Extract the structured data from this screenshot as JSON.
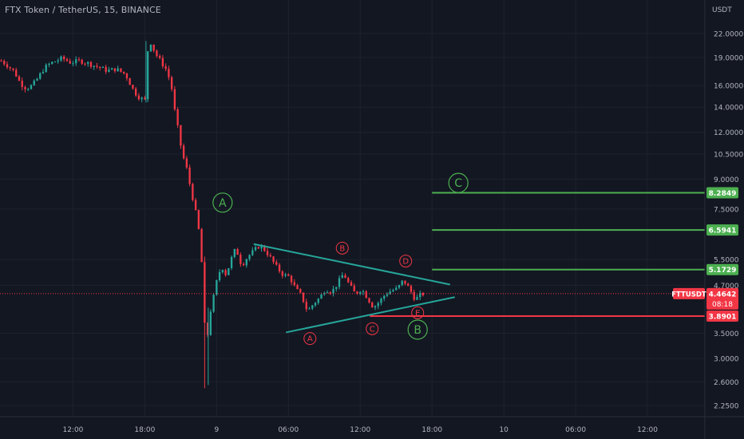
{
  "header": {
    "title": "FTX Token / TetherUS, 15, BINANCE"
  },
  "axis": {
    "currency": "USDT",
    "y_ticks": [
      {
        "label": "22.0000",
        "value": 22.0
      },
      {
        "label": "19.0000",
        "value": 19.0
      },
      {
        "label": "16.0000",
        "value": 16.0
      },
      {
        "label": "14.0000",
        "value": 14.0
      },
      {
        "label": "12.0000",
        "value": 12.0
      },
      {
        "label": "10.5000",
        "value": 10.5
      },
      {
        "label": "9.0000",
        "value": 9.0
      },
      {
        "label": "7.5000",
        "value": 7.5
      },
      {
        "label": "5.5000",
        "value": 5.5
      },
      {
        "label": "4.7000",
        "value": 4.7
      },
      {
        "label": "3.5000",
        "value": 3.5
      },
      {
        "label": "3.0000",
        "value": 3.0
      },
      {
        "label": "2.6000",
        "value": 2.6
      },
      {
        "label": "2.2500",
        "value": 2.25
      }
    ],
    "x_ticks": [
      {
        "label": "12:00",
        "t": 12
      },
      {
        "label": "18:00",
        "t": 18
      },
      {
        "label": "9",
        "t": 24
      },
      {
        "label": "06:00",
        "t": 30
      },
      {
        "label": "12:00",
        "t": 36
      },
      {
        "label": "18:00",
        "t": 42
      },
      {
        "label": "10",
        "t": 48
      },
      {
        "label": "06:00",
        "t": 54
      },
      {
        "label": "12:00",
        "t": 60
      }
    ]
  },
  "price_tags": [
    {
      "label": "8.2849",
      "value": 8.2849,
      "color": "#4caf50"
    },
    {
      "label": "6.5941",
      "value": 6.5941,
      "color": "#4caf50"
    },
    {
      "label": "5.1729",
      "value": 5.1729,
      "color": "#4caf50"
    },
    {
      "label": "3.8901",
      "value": 3.8901,
      "color": "#f23645"
    }
  ],
  "current": {
    "symbol": "FTTUSDT",
    "price": "4.4642",
    "countdown": "08:18",
    "value": 4.4642,
    "color": "#f23645"
  },
  "annotations": {
    "levels": [
      {
        "value": 8.2849,
        "t_start": 42,
        "color": "#4caf50"
      },
      {
        "value": 6.5941,
        "t_start": 42,
        "color": "#4caf50"
      },
      {
        "value": 5.1729,
        "t_start": 42,
        "color": "#4caf50"
      },
      {
        "value": 3.8901,
        "t_start": 36.8,
        "color": "#f23645"
      }
    ],
    "trendlines": [
      {
        "t1": 27.1,
        "v1": 6.05,
        "t2": 43.5,
        "v2": 4.72,
        "color": "#26a69a"
      },
      {
        "t1": 29.8,
        "v1": 3.52,
        "t2": 43.9,
        "v2": 4.37,
        "color": "#26a69a"
      }
    ],
    "wave_labels": [
      {
        "text": "A",
        "t": 24.5,
        "v": 7.8,
        "color": "#4caf50",
        "size": "large"
      },
      {
        "text": "B",
        "t": 40.8,
        "v": 3.58,
        "color": "#4caf50",
        "size": "large"
      },
      {
        "text": "C",
        "t": 44.2,
        "v": 8.8,
        "color": "#4caf50",
        "size": "large"
      },
      {
        "text": "A",
        "t": 31.8,
        "v": 3.39,
        "color": "#f23645",
        "size": "small"
      },
      {
        "text": "B",
        "t": 34.5,
        "v": 5.9,
        "color": "#f23645",
        "size": "small"
      },
      {
        "text": "C",
        "t": 37.0,
        "v": 3.6,
        "color": "#f23645",
        "size": "small"
      },
      {
        "text": "D",
        "t": 39.8,
        "v": 5.45,
        "color": "#f23645",
        "size": "small"
      },
      {
        "text": "E",
        "t": 40.8,
        "v": 3.97,
        "color": "#f23645",
        "size": "small"
      }
    ]
  },
  "chart_data": {
    "type": "candlestick",
    "symbol": "FTTUSDT",
    "interval": "15",
    "exchange": "BINANCE",
    "y_scale": "log",
    "x_unit": "hours from Nov 8 00:00",
    "up_color": "#26a69a",
    "down_color": "#f23645",
    "x_range": [
      5.9,
      64.8
    ],
    "y_range": [
      2.1,
      27.0
    ],
    "grid": true,
    "path_points": [
      [
        6.0,
        18.6
      ],
      [
        6.5,
        18.1
      ],
      [
        7.1,
        17.4
      ],
      [
        7.6,
        16.2
      ],
      [
        8.1,
        15.7
      ],
      [
        8.6,
        16.0
      ],
      [
        9.1,
        16.8
      ],
      [
        9.6,
        17.8
      ],
      [
        10.1,
        18.3
      ],
      [
        10.6,
        18.6
      ],
      [
        11.1,
        18.9
      ],
      [
        11.8,
        18.4
      ],
      [
        12.6,
        18.6
      ],
      [
        13.3,
        18.3
      ],
      [
        14.1,
        17.9
      ],
      [
        14.9,
        17.5
      ],
      [
        15.6,
        17.7
      ],
      [
        16.4,
        17.1
      ],
      [
        17.1,
        15.4
      ],
      [
        17.6,
        14.8
      ],
      [
        18.0,
        14.6
      ],
      [
        18.2,
        19.6
      ],
      [
        18.5,
        20.8
      ],
      [
        18.9,
        19.4
      ],
      [
        19.3,
        18.6
      ],
      [
        19.8,
        17.6
      ],
      [
        20.2,
        16.1
      ],
      [
        20.5,
        13.7
      ],
      [
        20.8,
        12.1
      ],
      [
        21.1,
        10.6
      ],
      [
        21.5,
        9.6
      ],
      [
        21.8,
        8.6
      ],
      [
        22.2,
        7.5
      ],
      [
        22.5,
        6.6
      ],
      [
        22.8,
        5.2
      ],
      [
        23.1,
        3.1
      ],
      [
        23.4,
        3.9
      ],
      [
        23.7,
        4.3
      ],
      [
        24.0,
        4.8
      ],
      [
        24.4,
        5.3
      ],
      [
        24.8,
        5.0
      ],
      [
        25.2,
        5.5
      ],
      [
        25.6,
        5.9
      ],
      [
        26.1,
        5.3
      ],
      [
        26.6,
        5.6
      ],
      [
        27.1,
        5.8
      ],
      [
        27.6,
        6.0
      ],
      [
        28.1,
        5.8
      ],
      [
        28.6,
        5.5
      ],
      [
        29.1,
        5.2
      ],
      [
        29.6,
        5.0
      ],
      [
        30.1,
        4.95
      ],
      [
        30.6,
        4.6
      ],
      [
        31.1,
        4.4
      ],
      [
        31.6,
        4.0
      ],
      [
        32.1,
        4.2
      ],
      [
        32.6,
        4.35
      ],
      [
        33.1,
        4.6
      ],
      [
        33.6,
        4.5
      ],
      [
        34.1,
        4.75
      ],
      [
        34.6,
        5.05
      ],
      [
        35.1,
        4.7
      ],
      [
        35.6,
        4.45
      ],
      [
        36.1,
        4.6
      ],
      [
        36.6,
        4.35
      ],
      [
        37.1,
        4.1
      ],
      [
        37.6,
        4.25
      ],
      [
        38.1,
        4.45
      ],
      [
        38.6,
        4.55
      ],
      [
        39.1,
        4.6
      ],
      [
        39.6,
        4.85
      ],
      [
        40.1,
        4.6
      ],
      [
        40.6,
        4.3
      ],
      [
        41.1,
        4.45
      ],
      [
        41.4,
        4.46
      ]
    ]
  }
}
